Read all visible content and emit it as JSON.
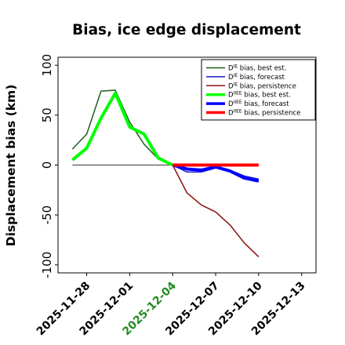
{
  "chart_data": {
    "type": "line",
    "title": "Bias, ice edge displacement",
    "xlabel": "",
    "ylabel": "Displacement bias (km)",
    "x_ticks": [
      "2025-11-28",
      "2025-12-01",
      "2025-12-04",
      "2025-12-07",
      "2025-12-10",
      "2025-12-13"
    ],
    "x_tick_colors": [
      "#000000",
      "#000000",
      "#228b22",
      "#000000",
      "#000000",
      "#000000"
    ],
    "y_ticks": [
      100,
      50,
      0,
      -50,
      -100
    ],
    "xlim": [
      "2025-11-26",
      "2025-12-14"
    ],
    "ylim": [
      -108,
      108
    ],
    "zero_line": 0,
    "legend_location": "top-right",
    "series": [
      {
        "legend_base": "D",
        "legend_sup": "IE",
        "legend_rest": " bias, best est.",
        "color": "#1f5c1f",
        "width": 1.5,
        "x": [
          "2025-11-27",
          "2025-11-28",
          "2025-11-29",
          "2025-11-30",
          "2025-12-01",
          "2025-12-02",
          "2025-12-03",
          "2025-12-04"
        ],
        "values": [
          16,
          31,
          74,
          75,
          43,
          21,
          6,
          0
        ]
      },
      {
        "legend_base": "D",
        "legend_sup": "IE",
        "legend_rest": " bias, forecast",
        "color": "#1a1acc",
        "width": 1.5,
        "x": [
          "2025-12-04",
          "2025-12-05",
          "2025-12-06",
          "2025-12-07",
          "2025-12-08",
          "2025-12-09",
          "2025-12-10"
        ],
        "values": [
          0,
          -7,
          -7,
          -3,
          -5,
          -11,
          -14
        ]
      },
      {
        "legend_base": "D",
        "legend_sup": "IE",
        "legend_rest": " bias, persistence",
        "color": "#8b1010",
        "width": 1.5,
        "x": [
          "2025-12-04",
          "2025-12-05",
          "2025-12-06",
          "2025-12-07",
          "2025-12-08",
          "2025-12-09",
          "2025-12-10"
        ],
        "values": [
          0,
          -28,
          -40,
          -47,
          -60,
          -78,
          -92
        ]
      },
      {
        "legend_base": "D",
        "legend_sup": "IIEE",
        "legend_rest": " bias, best est.",
        "color": "#00ff00",
        "width": 4,
        "x": [
          "2025-11-27",
          "2025-11-28",
          "2025-11-29",
          "2025-11-30",
          "2025-12-01",
          "2025-12-02",
          "2025-12-03",
          "2025-12-04"
        ],
        "values": [
          5,
          17,
          47,
          72,
          38,
          31,
          7,
          0
        ]
      },
      {
        "legend_base": "D",
        "legend_sup": "IIEE",
        "legend_rest": " bias, forecast",
        "color": "#0000ff",
        "width": 4,
        "x": [
          "2025-12-04",
          "2025-12-05",
          "2025-12-06",
          "2025-12-07",
          "2025-12-08",
          "2025-12-09",
          "2025-12-10"
        ],
        "values": [
          0,
          -4,
          -5,
          -2,
          -6,
          -13,
          -16
        ]
      },
      {
        "legend_base": "D",
        "legend_sup": "IIEE",
        "legend_rest": " bias, persistence",
        "color": "#ff0000",
        "width": 4,
        "x": [
          "2025-12-04",
          "2025-12-05",
          "2025-12-06",
          "2025-12-07",
          "2025-12-08",
          "2025-12-09",
          "2025-12-10"
        ],
        "values": [
          0,
          0,
          0,
          0,
          0,
          0,
          0
        ]
      }
    ]
  }
}
